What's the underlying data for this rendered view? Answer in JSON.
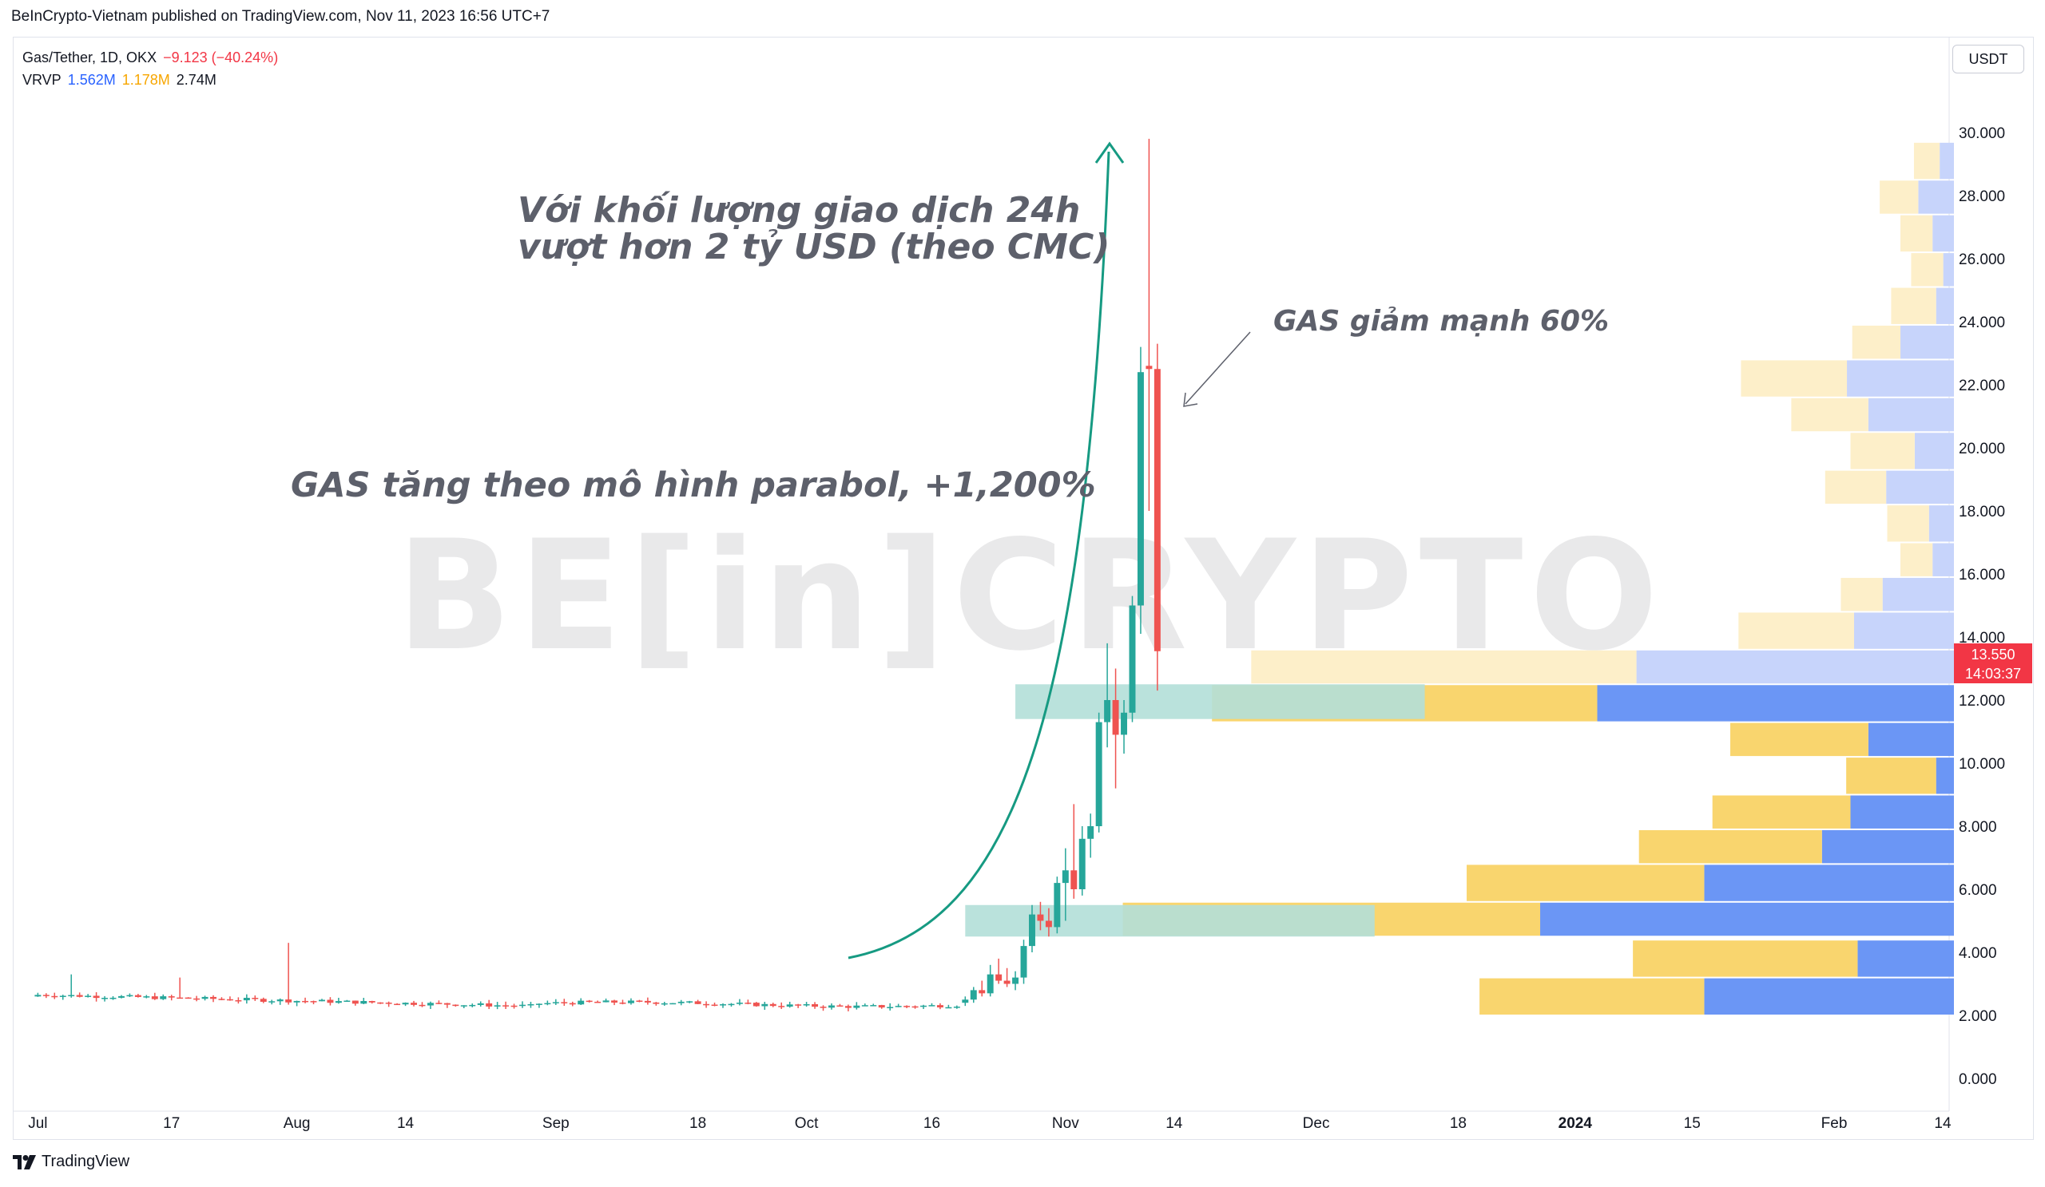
{
  "publication": "BeInCrypto-Vietnam published on TradingView.com, Nov 11, 2023 16:56 UTC+7",
  "legend": {
    "symbol": "Gas/Tether, 1D, OKX",
    "change": "−9.123 (−40.24%)",
    "indicator": "VRVP",
    "vol_up": "1.562M",
    "vol_down": "1.178M",
    "vol_total": "2.74M"
  },
  "currency": "USDT",
  "last_price": {
    "price": "13.550",
    "countdown": "14:03:37"
  },
  "watermark": "BE[in]CRYPTO",
  "annotations": {
    "volume_line1": "Với khối lượng giao dịch 24h",
    "volume_line2": "vượt hơn 2 tỷ USD (theo CMC)",
    "drop": "GAS giảm mạnh 60%",
    "rise": "GAS tăng theo mô hình parabol, +1,200%"
  },
  "footer": {
    "brand": "TradingView",
    "logo": "tv-logo-icon"
  },
  "colors": {
    "up": "#26a69a",
    "down": "#ef5350",
    "vol_up": "#6b96f5",
    "vol_down": "#f9d56e",
    "zone": "#b2dfd8",
    "arrow": "#169a82"
  },
  "chart_data": {
    "type": "candlestick",
    "y_axis": {
      "unit": "USDT",
      "ticks": [
        "0.000",
        "2.000",
        "4.000",
        "6.000",
        "8.000",
        "10.000",
        "12.000",
        "14.000",
        "16.000",
        "18.000",
        "20.000",
        "22.000",
        "24.000",
        "26.000",
        "28.000",
        "30.000"
      ],
      "range": [
        -1.0,
        31.0
      ]
    },
    "x_axis": {
      "ticks": [
        {
          "label": "Jul",
          "date": "2023-07-01"
        },
        {
          "label": "17",
          "date": "2023-07-17"
        },
        {
          "label": "Aug",
          "date": "2023-08-01"
        },
        {
          "label": "14",
          "date": "2023-08-14"
        },
        {
          "label": "Sep",
          "date": "2023-09-01"
        },
        {
          "label": "18",
          "date": "2023-09-18"
        },
        {
          "label": "Oct",
          "date": "2023-10-01"
        },
        {
          "label": "16",
          "date": "2023-10-16"
        },
        {
          "label": "Nov",
          "date": "2023-11-01"
        },
        {
          "label": "14",
          "date": "2023-11-14"
        },
        {
          "label": "Dec",
          "date": "2023-12-01"
        },
        {
          "label": "18",
          "date": "2023-12-18"
        },
        {
          "label": "2024",
          "date": "2024-01-01",
          "bold": true
        },
        {
          "label": "15",
          "date": "2024-01-15"
        },
        {
          "label": "Feb",
          "date": "2024-02-01"
        },
        {
          "label": "14",
          "date": "2024-02-14"
        }
      ],
      "range": [
        "2023-06-28",
        "2024-02-14"
      ]
    },
    "candles_note": "Daily OHLC estimated from chart",
    "candles": [
      {
        "date": "2023-10-20",
        "o": 2.4,
        "h": 2.6,
        "l": 2.3,
        "c": 2.5
      },
      {
        "date": "2023-10-21",
        "o": 2.5,
        "h": 2.9,
        "l": 2.4,
        "c": 2.8
      },
      {
        "date": "2023-10-22",
        "o": 2.8,
        "h": 3.1,
        "l": 2.6,
        "c": 2.7
      },
      {
        "date": "2023-10-23",
        "o": 2.7,
        "h": 3.6,
        "l": 2.6,
        "c": 3.3
      },
      {
        "date": "2023-10-24",
        "o": 3.3,
        "h": 3.8,
        "l": 3.0,
        "c": 3.1
      },
      {
        "date": "2023-10-25",
        "o": 3.1,
        "h": 3.5,
        "l": 2.9,
        "c": 3.0
      },
      {
        "date": "2023-10-26",
        "o": 3.0,
        "h": 3.4,
        "l": 2.8,
        "c": 3.2
      },
      {
        "date": "2023-10-27",
        "o": 3.2,
        "h": 4.4,
        "l": 3.0,
        "c": 4.2
      },
      {
        "date": "2023-10-28",
        "o": 4.2,
        "h": 5.5,
        "l": 4.0,
        "c": 5.2
      },
      {
        "date": "2023-10-29",
        "o": 5.2,
        "h": 5.6,
        "l": 4.7,
        "c": 5.0
      },
      {
        "date": "2023-10-30",
        "o": 5.0,
        "h": 5.4,
        "l": 4.5,
        "c": 4.8
      },
      {
        "date": "2023-10-31",
        "o": 4.8,
        "h": 6.4,
        "l": 4.6,
        "c": 6.2
      },
      {
        "date": "2023-11-01",
        "o": 6.2,
        "h": 7.3,
        "l": 5.0,
        "c": 6.6
      },
      {
        "date": "2023-11-02",
        "o": 6.6,
        "h": 8.7,
        "l": 5.7,
        "c": 6.0
      },
      {
        "date": "2023-11-03",
        "o": 6.0,
        "h": 8.0,
        "l": 5.8,
        "c": 7.6
      },
      {
        "date": "2023-11-04",
        "o": 7.6,
        "h": 8.4,
        "l": 7.0,
        "c": 8.0
      },
      {
        "date": "2023-11-05",
        "o": 8.0,
        "h": 11.6,
        "l": 7.8,
        "c": 11.3
      },
      {
        "date": "2023-11-06",
        "o": 11.3,
        "h": 13.8,
        "l": 10.5,
        "c": 12.0
      },
      {
        "date": "2023-11-07",
        "o": 12.0,
        "h": 13.0,
        "l": 9.2,
        "c": 10.9
      },
      {
        "date": "2023-11-08",
        "o": 10.9,
        "h": 12.0,
        "l": 10.3,
        "c": 11.6
      },
      {
        "date": "2023-11-09",
        "o": 11.6,
        "h": 15.3,
        "l": 11.3,
        "c": 15.0
      },
      {
        "date": "2023-11-10",
        "o": 15.0,
        "h": 23.2,
        "l": 14.1,
        "c": 22.4
      },
      {
        "date": "2023-11-11",
        "o": 22.6,
        "h": 29.8,
        "l": 18.0,
        "c": 22.5
      },
      {
        "date": "2023-11-12",
        "o": 22.5,
        "h": 23.3,
        "l": 12.3,
        "c": 13.55
      }
    ],
    "flat_range_note": "Jul 1 to Oct 19 price moved sideways around 2.2 to 2.8 USDT",
    "zones": [
      {
        "from": "2023-10-26",
        "to": "2023-12-14",
        "low": 11.4,
        "high": 12.5
      },
      {
        "from": "2023-10-20",
        "to": "2023-12-08",
        "low": 4.5,
        "high": 5.5
      }
    ],
    "volume_profile": [
      {
        "low": 2.0,
        "high": 3.2,
        "buy_width": 0.7,
        "sell_width": 0.7
      },
      {
        "low": 3.2,
        "high": 4.4,
        "buy_width": 0.7,
        "sell_width": 0.27
      },
      {
        "low": 4.5,
        "high": 5.6,
        "buy_width": 1.3,
        "sell_width": 1.16
      },
      {
        "low": 5.6,
        "high": 6.8,
        "buy_width": 0.74,
        "sell_width": 0.7
      },
      {
        "low": 6.8,
        "high": 7.9,
        "buy_width": 0.57,
        "sell_width": 0.37
      },
      {
        "low": 7.9,
        "high": 9.0,
        "buy_width": 0.43,
        "sell_width": 0.29
      },
      {
        "low": 9.0,
        "high": 10.2,
        "buy_width": 0.28,
        "sell_width": 0.05
      },
      {
        "low": 10.2,
        "high": 11.3,
        "buy_width": 0.43,
        "sell_width": 0.24
      },
      {
        "low": 11.3,
        "high": 12.5,
        "buy_width": 1.2,
        "sell_width": 1.0
      },
      {
        "low": 12.5,
        "high": 13.6,
        "buy_width": 1.2,
        "sell_width": 0.89
      },
      {
        "low": 13.6,
        "high": 14.8,
        "buy_width": 0.36,
        "sell_width": 0.28
      },
      {
        "low": 14.8,
        "high": 15.9,
        "buy_width": 0.13,
        "sell_width": 0.2
      },
      {
        "low": 15.9,
        "high": 17.0,
        "buy_width": 0.1,
        "sell_width": 0.06
      },
      {
        "low": 17.0,
        "high": 18.2,
        "buy_width": 0.13,
        "sell_width": 0.07
      },
      {
        "low": 18.2,
        "high": 19.3,
        "buy_width": 0.19,
        "sell_width": 0.19
      },
      {
        "low": 19.3,
        "high": 20.5,
        "buy_width": 0.2,
        "sell_width": 0.11
      },
      {
        "low": 20.5,
        "high": 21.6,
        "buy_width": 0.24,
        "sell_width": 0.24
      },
      {
        "low": 21.6,
        "high": 22.8,
        "buy_width": 0.33,
        "sell_width": 0.3
      },
      {
        "low": 22.8,
        "high": 23.9,
        "buy_width": 0.15,
        "sell_width": 0.15
      },
      {
        "low": 23.9,
        "high": 25.1,
        "buy_width": 0.14,
        "sell_width": 0.05
      },
      {
        "low": 25.1,
        "high": 26.2,
        "buy_width": 0.1,
        "sell_width": 0.03
      },
      {
        "low": 26.2,
        "high": 27.4,
        "buy_width": 0.1,
        "sell_width": 0.06
      },
      {
        "low": 27.4,
        "high": 28.5,
        "buy_width": 0.12,
        "sell_width": 0.1
      },
      {
        "low": 28.5,
        "high": 29.7,
        "buy_width": 0.08,
        "sell_width": 0.04
      }
    ]
  }
}
